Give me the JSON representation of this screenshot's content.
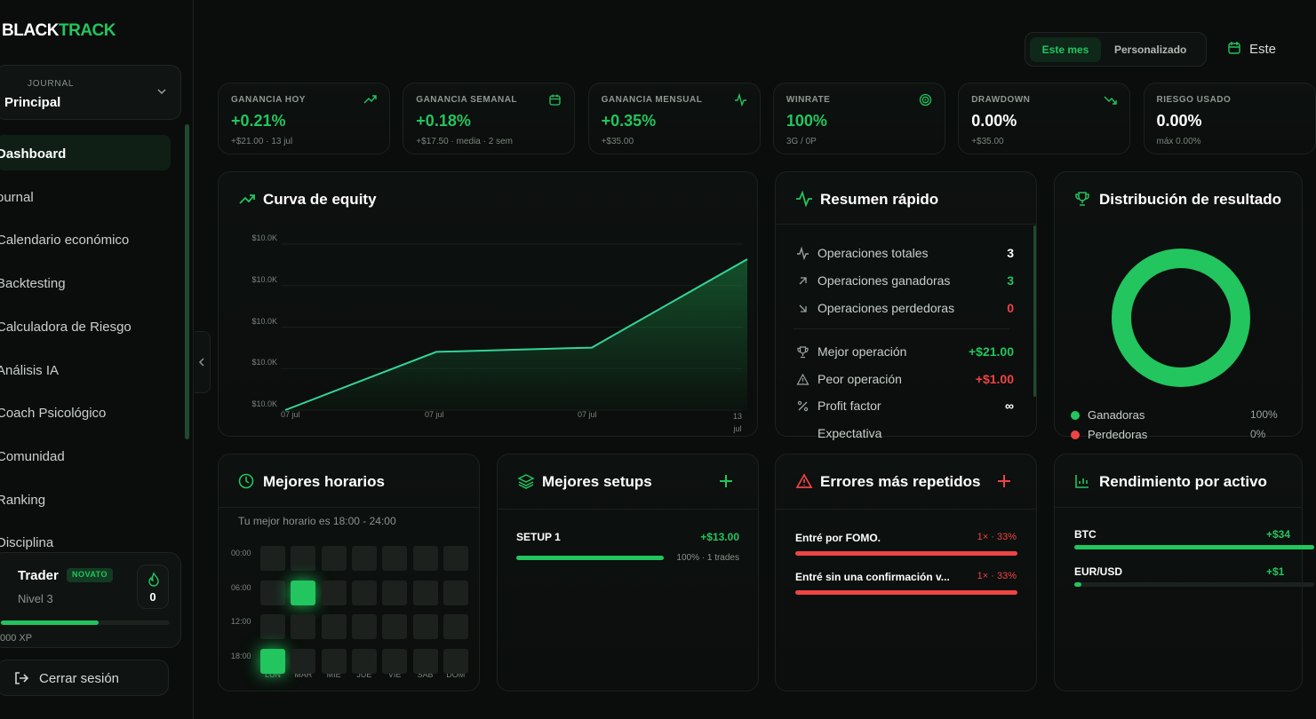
{
  "brand": {
    "part1": "BLACK",
    "part2": "TRACK"
  },
  "journal": {
    "label": "JOURNAL",
    "value": "Principal"
  },
  "nav": [
    {
      "label": "Dashboard",
      "active": true
    },
    {
      "label": "ournal"
    },
    {
      "label": "Calendario económico"
    },
    {
      "label": "Backtesting"
    },
    {
      "label": "Calculadora de Riesgo"
    },
    {
      "label": "Análisis IA"
    },
    {
      "label": "Coach Psicológico"
    },
    {
      "label": "Comunidad"
    },
    {
      "label": "Ranking"
    },
    {
      "label": "Disciplina"
    }
  ],
  "user": {
    "name": "Trader",
    "badge": "NOVATO",
    "level": "Nivel 3",
    "streak": "0",
    "xp_text": "000 XP",
    "xp_progress": 0.58
  },
  "logout": "Cerrar sesión",
  "range": {
    "active": "Este mes",
    "other": "Personalizado",
    "calendar": "Este"
  },
  "stats": [
    {
      "label": "GANANCIA HOY",
      "value": "+0.21%",
      "sub": "+$21.00 · 13 jul",
      "color": "green",
      "icon": "trend-up-icon"
    },
    {
      "label": "GANANCIA SEMANAL",
      "value": "+0.18%",
      "sub": "+$17.50 · media · 2 sem",
      "color": "green",
      "icon": "calendar-icon"
    },
    {
      "label": "GANANCIA MENSUAL",
      "value": "+0.35%",
      "sub": "+$35.00",
      "color": "green",
      "icon": "activity-icon"
    },
    {
      "label": "WINRATE",
      "value": "100%",
      "sub": "3G / 0P",
      "color": "green",
      "icon": "target-icon"
    },
    {
      "label": "DRAWDOWN",
      "value": "0.00%",
      "sub": "+$35.00",
      "color": "white",
      "icon": "trend-down-icon"
    },
    {
      "label": "RIESGO USADO",
      "value": "0.00%",
      "sub": "máx 0.00%",
      "color": "white",
      "icon": ""
    }
  ],
  "equity": {
    "title": "Curva de equity",
    "chart_data": {
      "type": "area",
      "y_ticks": [
        "$10.0K",
        "$10.0K",
        "$10.0K",
        "$10.0K",
        "$10.0K"
      ],
      "x_labels": [
        "07 jul",
        "07 jul",
        "07 jul",
        "13 jul"
      ],
      "values": [
        0,
        13.5,
        14.5,
        35
      ],
      "value_unit": "USD gain vs start (approx)",
      "color": "#22c55e"
    }
  },
  "quick": {
    "title": "Resumen rápido",
    "rows": [
      {
        "label": "Operaciones totales",
        "value": "3",
        "color": "white",
        "icon": "activity-icon"
      },
      {
        "label": "Operaciones ganadoras",
        "value": "3",
        "color": "green",
        "icon": "arrow-up-right-icon"
      },
      {
        "label": "Operaciones perdedoras",
        "value": "0",
        "color": "red",
        "icon": "arrow-down-right-icon"
      },
      {
        "label": "Mejor operación",
        "value": "+$21.00",
        "color": "green",
        "icon": "trophy-icon"
      },
      {
        "label": "Peor operación",
        "value": "+$1.00",
        "color": "red",
        "icon": "warning-icon"
      },
      {
        "label": "Profit factor",
        "value": "∞",
        "color": "white",
        "icon": "percent-icon"
      },
      {
        "label": "Expectativa",
        "value": "",
        "color": "white",
        "icon": ""
      }
    ]
  },
  "distribution": {
    "title": "Distribución de resultado",
    "chart_data": {
      "type": "pie",
      "slices": [
        {
          "name": "Ganadoras",
          "value": 100
        },
        {
          "name": "Perdedoras",
          "value": 0
        }
      ]
    },
    "legend": [
      {
        "label": "Ganadoras",
        "value": "100%",
        "color": "#22c55e"
      },
      {
        "label": "Perdedoras",
        "value": "0%",
        "color": "#ef4444"
      }
    ]
  },
  "hours": {
    "title": "Mejores horarios",
    "subtitle": "Tu mejor horario es 18:00 - 24:00",
    "rows": [
      "00:00",
      "06:00",
      "12:00",
      "18:00"
    ],
    "days": [
      "LUN",
      "MAR",
      "MIÉ",
      "JUE",
      "VIE",
      "SÁB",
      "DOM"
    ],
    "hot": [
      [
        1,
        1
      ],
      [
        3,
        0
      ]
    ]
  },
  "setups": {
    "title": "Mejores setups",
    "items": [
      {
        "name": "SETUP 1",
        "value": "+$13.00",
        "meta": "100% · 1 trades",
        "progress": 1.0
      }
    ]
  },
  "errors": {
    "title": "Errores más repetidos",
    "items": [
      {
        "name": "Entré por FOMO.",
        "value": "1× · 33%",
        "progress": 1.0
      },
      {
        "name": "Entré sin una confirmación v...",
        "value": "1× · 33%",
        "progress": 1.0
      }
    ]
  },
  "assets": {
    "title": "Rendimiento por activo",
    "items": [
      {
        "name": "BTC",
        "value": "+$34",
        "progress": 1.0
      },
      {
        "name": "EUR/USD",
        "value": "+$1",
        "progress": 0.03
      }
    ]
  }
}
